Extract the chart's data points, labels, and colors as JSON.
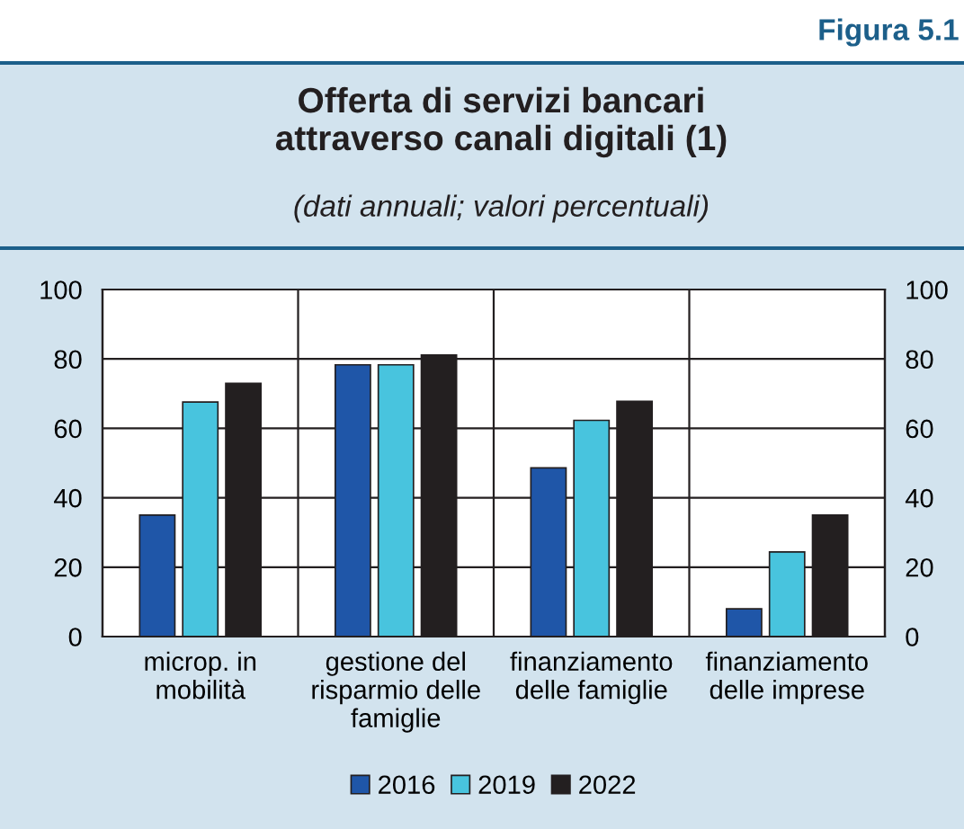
{
  "chart_data": {
    "type": "bar",
    "title": "Offerta di servizi bancari\nattraverso canali digitali (1)",
    "subtitle": "(dati annuali; valori percentuali)",
    "annotations": [
      "Figura 5.1"
    ],
    "categories": [
      "microp. in\nmobilità",
      "gestione del\nrisparmio delle\nfamiglie",
      "finanziamento\ndelle famiglie",
      "finanziamento\ndelle imprese"
    ],
    "series": [
      {
        "name": "2016",
        "color": "#1f56a8",
        "values": [
          35,
          78.3,
          48.6,
          8
        ]
      },
      {
        "name": "2019",
        "color": "#48c4de",
        "values": [
          67.6,
          78.3,
          62.3,
          24.4
        ]
      },
      {
        "name": "2022",
        "color": "#231f20",
        "values": [
          73,
          81.1,
          67.8,
          35
        ]
      }
    ],
    "ylim": [
      0,
      100
    ],
    "yticks": [
      0,
      20,
      40,
      60,
      80,
      100
    ],
    "y2lim": [
      0,
      100
    ],
    "y2ticks": [
      0,
      20,
      40,
      60,
      80,
      100
    ],
    "grid": true,
    "legend": "bottom"
  }
}
